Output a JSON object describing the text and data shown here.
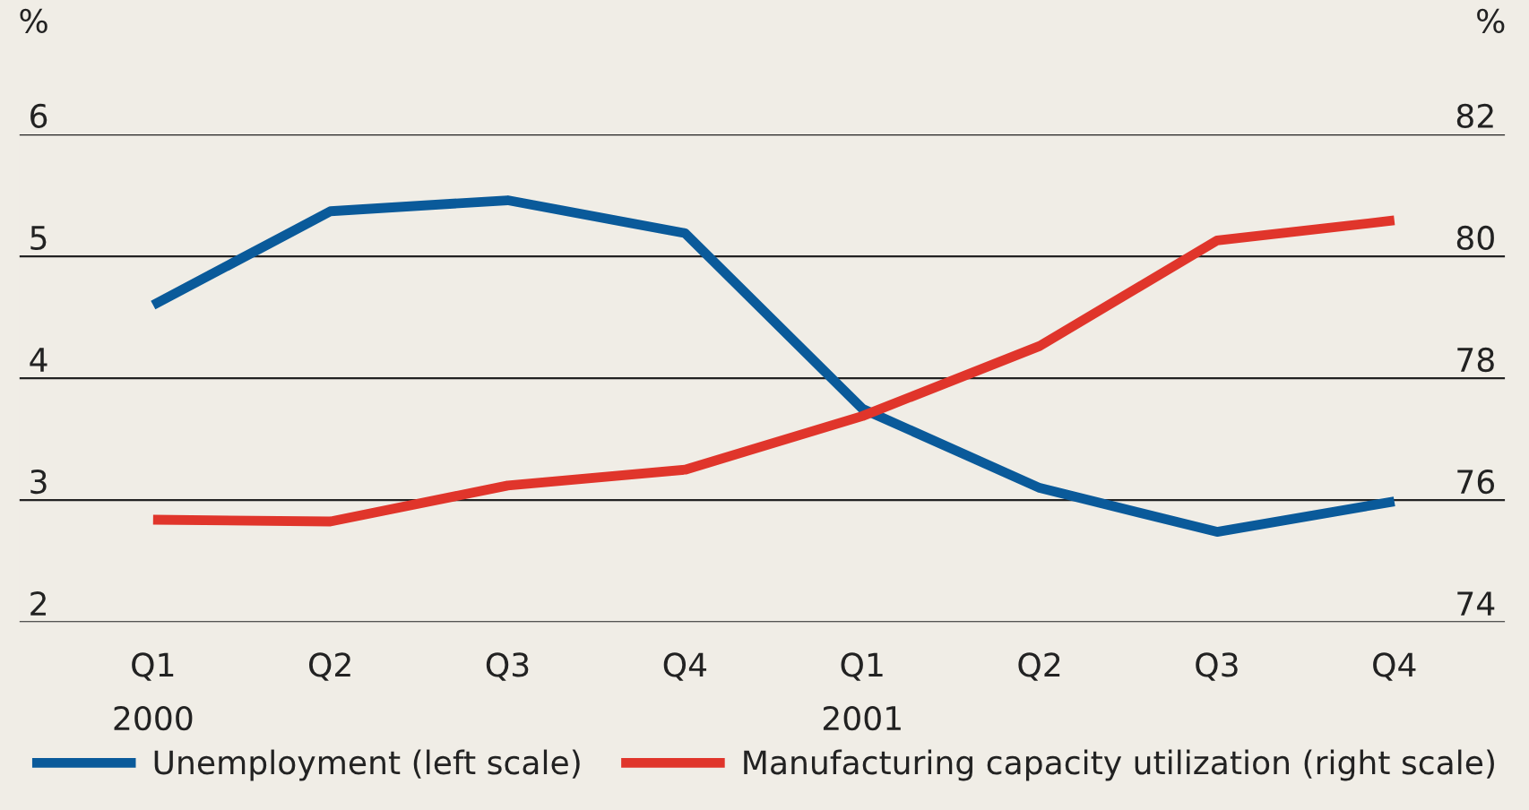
{
  "chart_data": {
    "type": "line",
    "categories": [
      "Q1\n2000",
      "Q2",
      "Q3",
      "Q4",
      "Q1\n2001",
      "Q2",
      "Q3",
      "Q4"
    ],
    "ylabel": "%",
    "y2label": "%",
    "ylim": [
      2,
      6
    ],
    "yticks": [
      2,
      3,
      4,
      5,
      6
    ],
    "y2lim": [
      74,
      82
    ],
    "y2ticks": [
      74,
      76,
      78,
      80,
      82
    ],
    "grid": "y",
    "legend": "bottom",
    "marker": "none",
    "line_style": "solid",
    "series": [
      {
        "name": "Unemployment (left scale)",
        "color": "#0a5a9a",
        "values": [
          4.6,
          5.37,
          5.46,
          5.19,
          3.75,
          3.1,
          2.74,
          2.99
        ]
      },
      {
        "name": "Manufacturing capacity utilization (right scale)",
        "color": "#e0352b",
        "axis": "y2",
        "values": [
          75.68,
          75.65,
          76.24,
          76.5,
          77.38,
          78.53,
          80.26,
          80.59
        ]
      }
    ]
  }
}
